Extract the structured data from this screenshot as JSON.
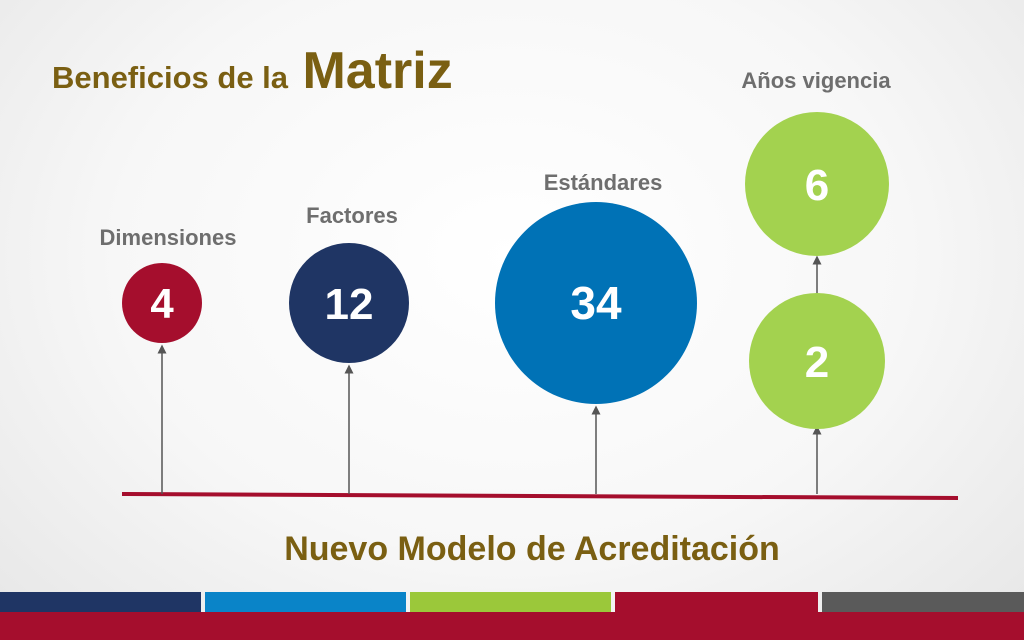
{
  "title": {
    "prefix": "Beneficios de la",
    "emphasis": "Matriz"
  },
  "caption": "Nuevo Modelo de Acreditación",
  "colors": {
    "title": "#7a5f12",
    "baseline": "#a50e2d",
    "label": "#6e6e6e",
    "arrow": "#555555"
  },
  "items": [
    {
      "label": "Dimensiones",
      "value": "4",
      "color": "#a50e2d"
    },
    {
      "label": "Factores",
      "value": "12",
      "color": "#1f3564"
    },
    {
      "label": "Estándares",
      "value": "34",
      "color": "#0072b6"
    },
    {
      "label": "Años vigencia",
      "value": "6",
      "color": "#a3d24f"
    },
    {
      "label": "",
      "value": "2",
      "color": "#a3d24f"
    }
  ],
  "footer_stripes": [
    "#1f3564",
    "#0a84c8",
    "#9bc83a",
    "#a50e2d",
    "#5a5a5a"
  ],
  "footer_bar_color": "#a50e2d"
}
